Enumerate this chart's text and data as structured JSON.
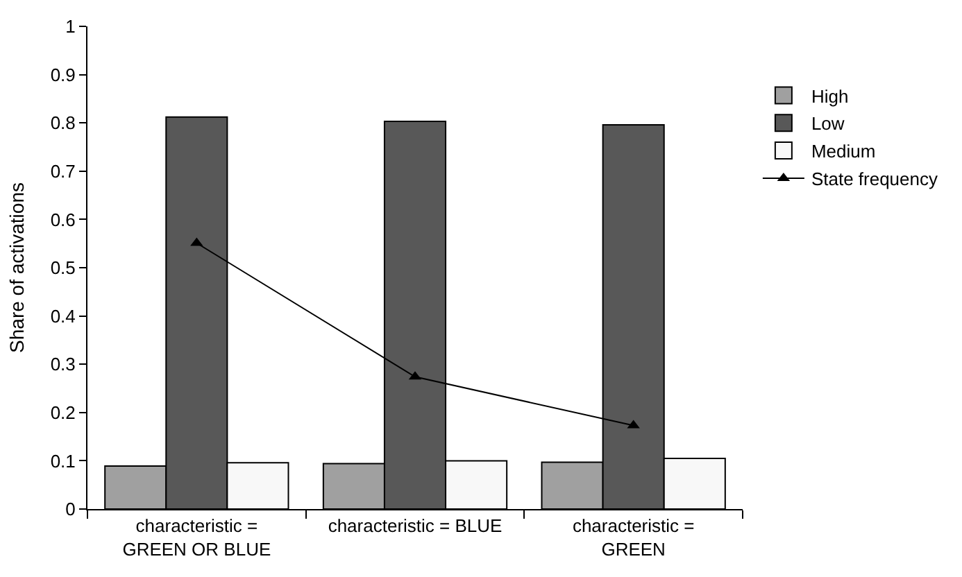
{
  "chart_data": {
    "type": "bar",
    "ylabel": "Share of activations",
    "categories": [
      "characteristic =\nGREEN OR BLUE",
      "characteristic = BLUE",
      "characteristic =\nGREEN"
    ],
    "series": [
      {
        "name": "High",
        "color": "#a0a0a0",
        "values": [
          0.089,
          0.094,
          0.097
        ]
      },
      {
        "name": "Low",
        "color": "#585858",
        "values": [
          0.812,
          0.803,
          0.796
        ]
      },
      {
        "name": "Medium",
        "color": "#f8f8f8",
        "values": [
          0.096,
          0.1,
          0.105
        ]
      },
      {
        "name": "State frequency",
        "type": "line",
        "color": "#000000",
        "marker": "triangle",
        "line_style": "solid",
        "values": [
          0.551,
          0.274,
          0.173
        ]
      }
    ],
    "ylim": [
      0,
      1
    ],
    "yticks": [
      0,
      0.1,
      0.2,
      0.3,
      0.4,
      0.5,
      0.6,
      0.7,
      0.8,
      0.9,
      1
    ],
    "legend": "top right"
  }
}
